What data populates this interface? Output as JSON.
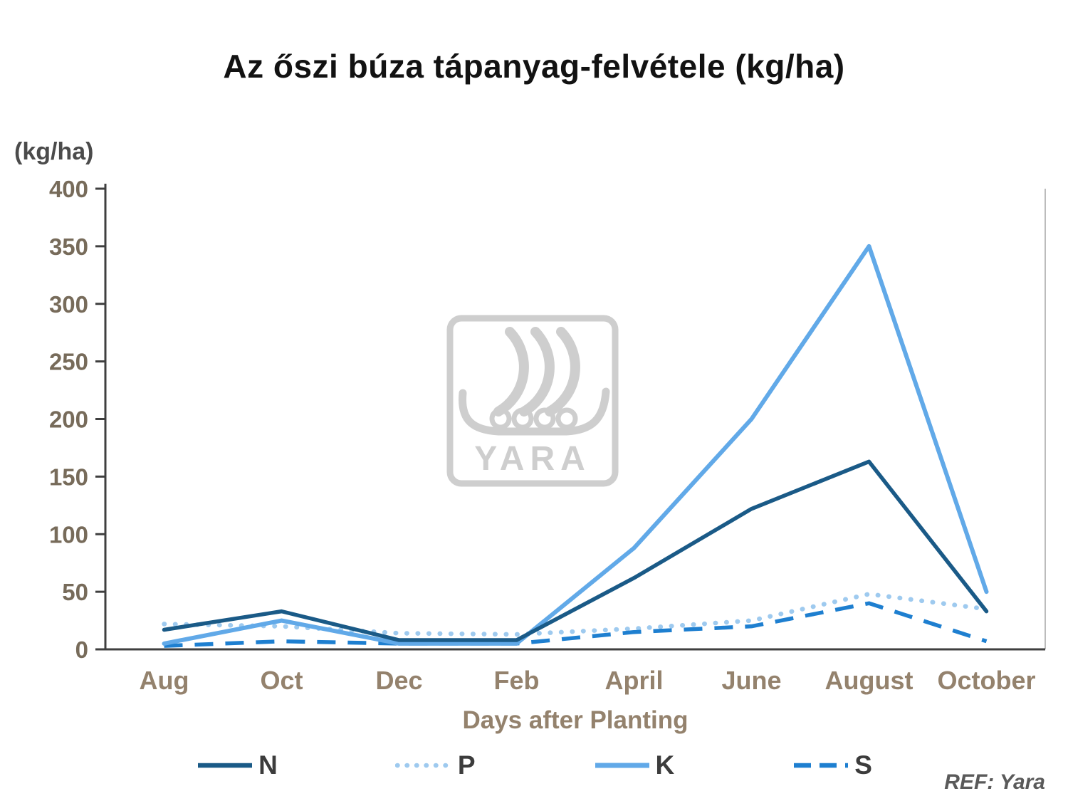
{
  "page": {
    "title": "Az őszi búza tápanyag-felvétele (kg/ha)",
    "ref": "REF: Yara"
  },
  "chart_data": {
    "type": "line",
    "title": "Az őszi búza tápanyag-felvétele (kg/ha)",
    "ylabel": "(kg/ha)",
    "xlabel": "Days after Planting",
    "categories": [
      "Aug",
      "Oct",
      "Dec",
      "Feb",
      "April",
      "June",
      "August",
      "October"
    ],
    "ylim": [
      0,
      400
    ],
    "ytick_step": 50,
    "grid": false,
    "legend_position": "bottom",
    "watermark_text": "YARA",
    "series": [
      {
        "name": "N",
        "style": "solid",
        "color": "#1a5a87",
        "width": 5.5,
        "values": [
          17,
          33,
          8,
          8,
          62,
          122,
          163,
          33
        ]
      },
      {
        "name": "P",
        "style": "dotted",
        "color": "#9ecaef",
        "width": 5.5,
        "values": [
          22,
          20,
          14,
          13,
          18,
          25,
          48,
          35
        ]
      },
      {
        "name": "K",
        "style": "solid",
        "color": "#61a9e8",
        "width": 6,
        "values": [
          5,
          25,
          5,
          5,
          88,
          200,
          350,
          50
        ]
      },
      {
        "name": "S",
        "style": "dashed",
        "color": "#1e7fd0",
        "width": 5.5,
        "values": [
          3,
          7,
          5,
          5,
          15,
          20,
          40,
          7
        ]
      }
    ]
  },
  "colors": {
    "title": "#121212",
    "axis": "#3f3f3f",
    "right_border": "#bcbcbc",
    "ytick_text": "#776b5a",
    "xtick_text": "#94826d",
    "xlabel_text": "#94826d",
    "ylabel_unit_text": "#4b4b4b",
    "legend_text": "#3c3c3c",
    "ref_text": "#5a5a5a",
    "watermark": "#c9c9c9"
  }
}
